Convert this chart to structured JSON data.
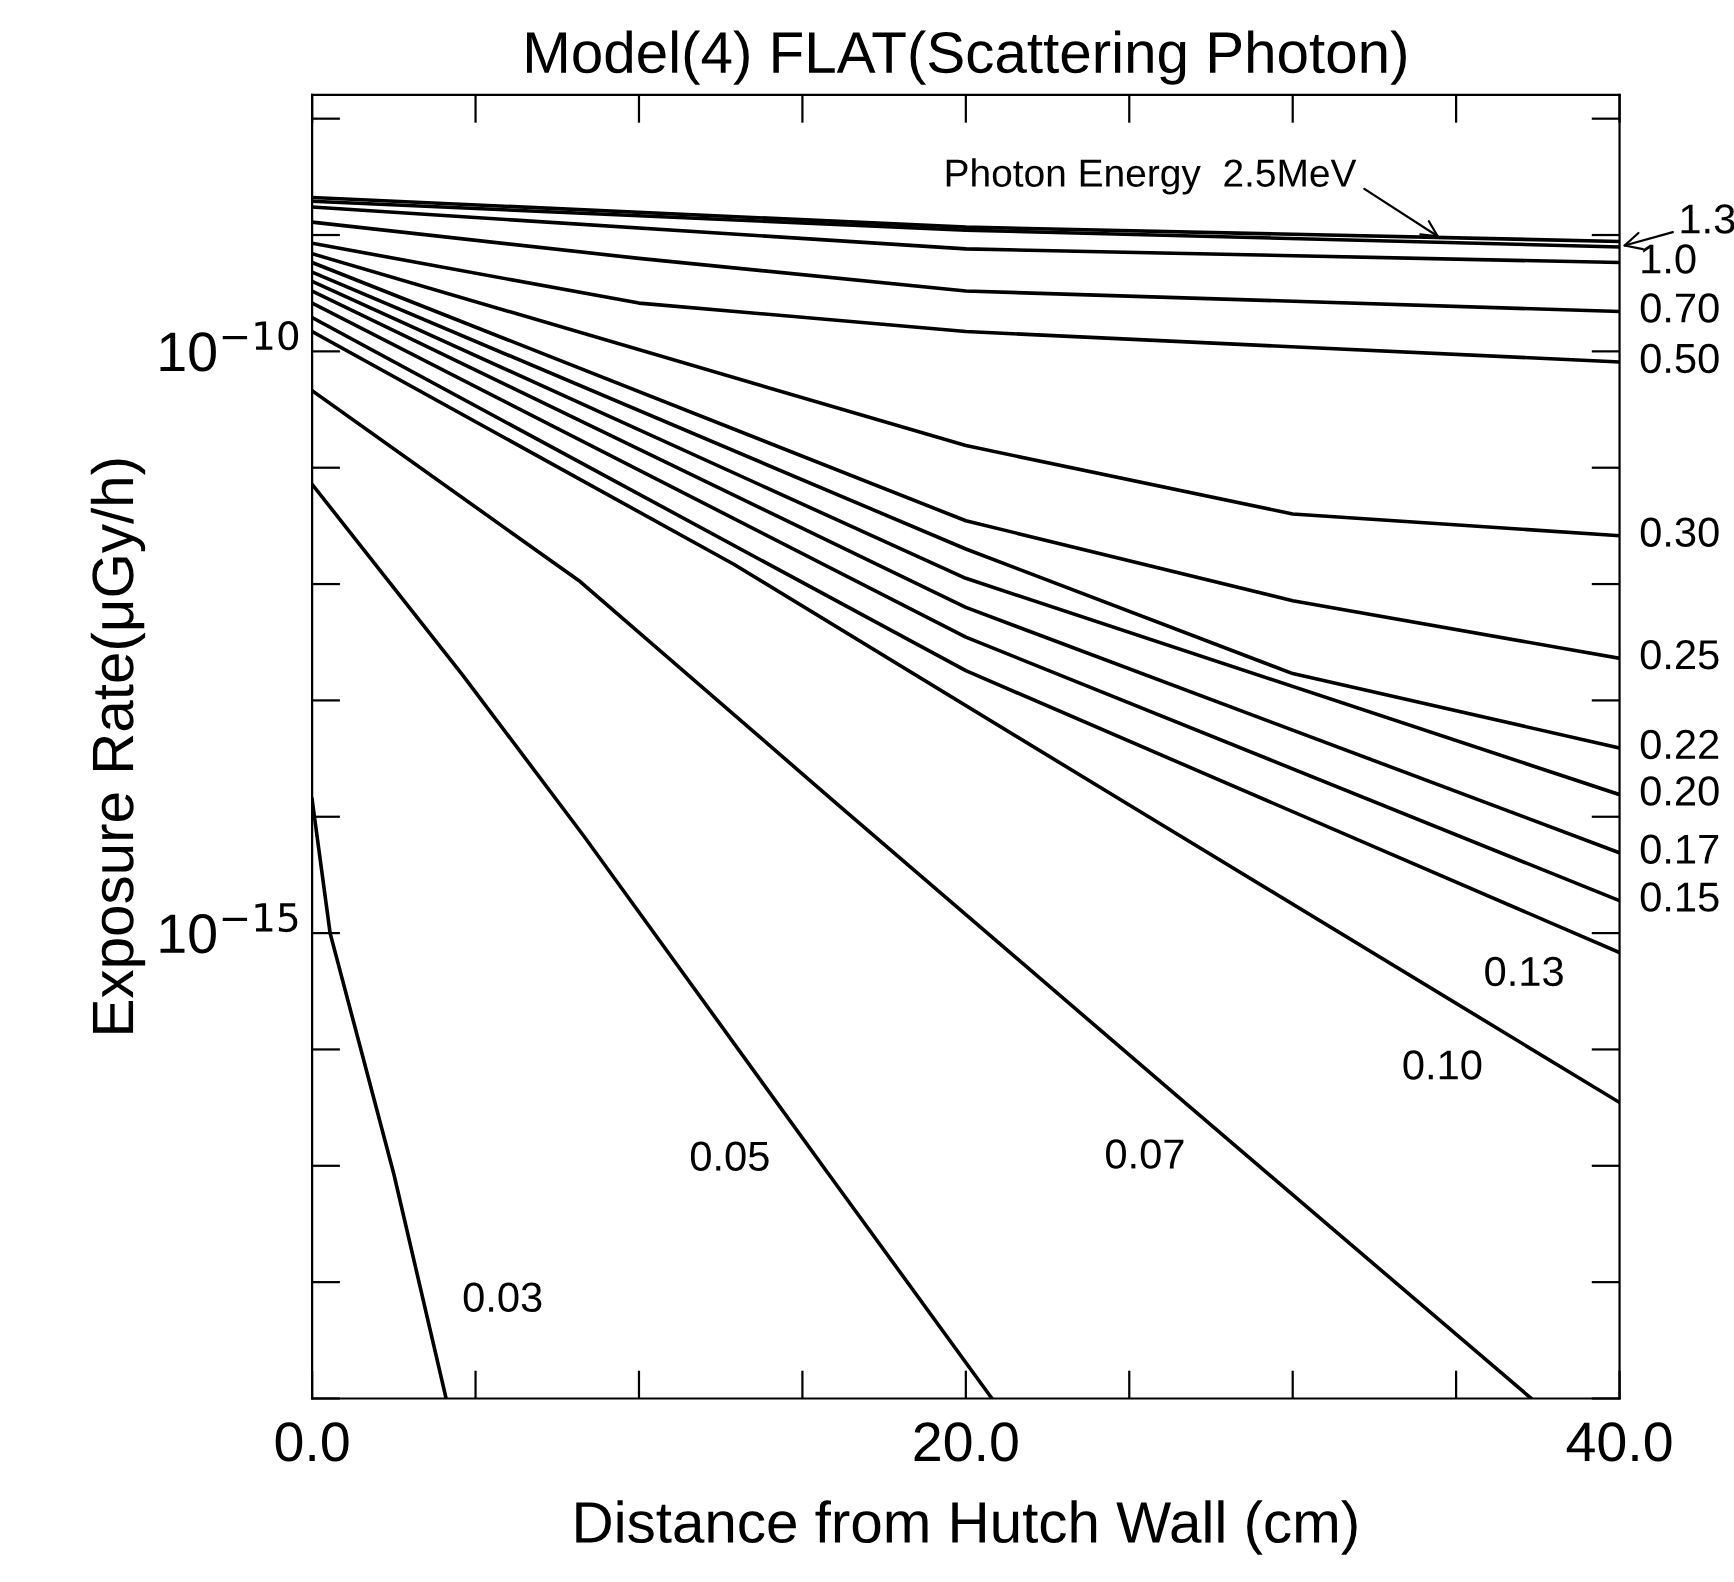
{
  "chart_data": {
    "type": "line",
    "title": "Model(4) FLAT(Scattering Photon)",
    "xlabel": "Distance from Hutch Wall (cm)",
    "ylabel": "Exposure Rate(μGy/h)",
    "log": "y",
    "xlim": [
      0,
      40
    ],
    "xticks": [
      {
        "value": 0,
        "label": "0.0"
      },
      {
        "value": 5,
        "label": null
      },
      {
        "value": 10,
        "label": null
      },
      {
        "value": 15,
        "label": null
      },
      {
        "value": 20,
        "label": "20.0"
      },
      {
        "value": 25,
        "label": null
      },
      {
        "value": 30,
        "label": null
      },
      {
        "value": 35,
        "label": null
      },
      {
        "value": 40,
        "label": "40.0"
      }
    ],
    "ylim": [
      1e-19,
      1.6e-08
    ],
    "yticks": [
      {
        "value": 1e-19,
        "label": null
      },
      {
        "value": 1e-18,
        "label": null
      },
      {
        "value": 1e-17,
        "label": null
      },
      {
        "value": 1e-16,
        "label": null
      },
      {
        "value": 1e-15,
        "label": "10$^{−15}$"
      },
      {
        "value": 1e-14,
        "label": null
      },
      {
        "value": 1e-13,
        "label": null
      },
      {
        "value": 1e-12,
        "label": null
      },
      {
        "value": 1e-11,
        "label": null
      },
      {
        "value": 1e-10,
        "label": "10$^{−10}$"
      },
      {
        "value": 1e-09,
        "label": null
      },
      {
        "value": 1e-08,
        "label": null
      }
    ],
    "grid": false,
    "line_style": "solid",
    "marker": "none",
    "series": [
      {
        "color": "#000000",
        "x": [
          0,
          20,
          40
        ],
        "values": [
          2.1e-09,
          1.17e-09,
          8.8e-10
        ]
      },
      {
        "color": "#000000",
        "x": [
          0,
          20,
          40
        ],
        "values": [
          1.95e-09,
          1.1e-09,
          7.9e-10
        ]
      },
      {
        "color": "#000000",
        "x": [
          0,
          20,
          40
        ],
        "values": [
          1.74e-09,
          7.6e-10,
          5.8e-10
        ]
      },
      {
        "color": "#000000",
        "x": [
          0,
          10,
          20,
          40
        ],
        "values": [
          1.29e-09,
          6.3e-10,
          3.3e-10,
          2.2e-10
        ]
      },
      {
        "color": "#000000",
        "x": [
          0,
          10,
          20,
          40
        ],
        "values": [
          8.5e-10,
          2.6e-10,
          1.48e-10,
          8.1e-11
        ]
      },
      {
        "color": "#000000",
        "x": [
          0,
          20,
          30,
          40
        ],
        "values": [
          6.9e-10,
          1.55e-11,
          4e-12,
          2.6e-12
        ]
      },
      {
        "color": "#000000",
        "x": [
          0,
          20,
          30,
          40
        ],
        "values": [
          5.8e-10,
          3.5e-12,
          7.2e-13,
          2.3e-13
        ]
      },
      {
        "color": "#000000",
        "x": [
          0,
          20,
          30,
          40
        ],
        "values": [
          4.8e-10,
          2e-12,
          1.7e-13,
          3.9e-14
        ]
      },
      {
        "color": "#000000",
        "x": [
          0,
          20,
          40
        ],
        "values": [
          4e-10,
          1.12e-12,
          1.55e-14
        ]
      },
      {
        "color": "#000000",
        "x": [
          0,
          20,
          40
        ],
        "values": [
          3.3e-10,
          6.3e-13,
          4.9e-15
        ]
      },
      {
        "color": "#000000",
        "x": [
          0,
          20,
          40
        ],
        "values": [
          2.6e-10,
          3.5e-13,
          1.9e-15
        ]
      },
      {
        "color": "#000000",
        "x": [
          0,
          20,
          40
        ],
        "values": [
          1.95e-10,
          1.8e-13,
          6.8e-16
        ]
      },
      {
        "color": "#000000",
        "x": [
          0,
          12.9,
          25,
          40
        ],
        "values": [
          1.48e-10,
          1.48e-12,
          1.26e-14,
          3.5e-17
        ]
      },
      {
        "color": "#000000",
        "x": [
          0,
          8.2,
          16.1,
          26.8,
          37.3
        ],
        "values": [
          4.6e-11,
          1.05e-12,
          1.26e-14,
          3.3e-17,
          1e-19
        ]
      },
      {
        "color": "#000000",
        "x": [
          0,
          4.6,
          8.3,
          15.7,
          20.8
        ],
        "values": [
          7.2e-12,
          1.66e-13,
          6.9e-15,
          9.3e-18,
          1e-19
        ]
      },
      {
        "color": "#000000",
        "x": [
          0,
          0.55,
          2.5,
          4.1
        ],
        "values": [
          1.41e-14,
          1e-15,
          8.5e-18,
          1e-19
        ]
      }
    ],
    "annotations": [
      {
        "text": "Photon Energy  2.5MeV",
        "x": 34.5,
        "y": 9.5e-10
      },
      {
        "text": "1.3",
        "x": 40,
        "y": 7.9e-10
      },
      {
        "text": "1.0",
        "x": 40,
        "y": 5.8e-10
      },
      {
        "text": "0.70",
        "x": 40,
        "y": 2.2e-10
      },
      {
        "text": "0.50",
        "x": 40,
        "y": 8.1e-11
      },
      {
        "text": "0.30",
        "x": 40,
        "y": 2.6e-12
      },
      {
        "text": "0.25",
        "x": 40,
        "y": 2.3e-13
      },
      {
        "text": "0.22",
        "x": 40,
        "y": 3.9e-14
      },
      {
        "text": "0.20",
        "x": 40,
        "y": 1.55e-14
      },
      {
        "text": "0.17",
        "x": 40,
        "y": 4.9e-15
      },
      {
        "text": "0.15",
        "x": 40,
        "y": 1.9e-15
      },
      {
        "text": "0.13",
        "x": 39,
        "y": 8.9e-16
      },
      {
        "text": "0.10",
        "x": 36.5,
        "y": 1.4e-16
      },
      {
        "text": "0.07",
        "x": 27.4,
        "y": 2.4e-17
      },
      {
        "text": "0.05",
        "x": 14.7,
        "y": 2.3e-17
      },
      {
        "text": "0.03",
        "x": 3.4,
        "y": 6.9e-19
      }
    ]
  }
}
